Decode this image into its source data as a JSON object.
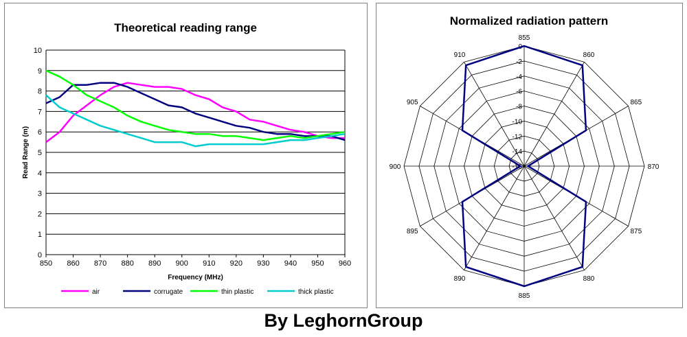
{
  "footer": {
    "credit": "By LeghornGroup"
  },
  "chart_data": [
    {
      "type": "line",
      "title": "Theoretical reading range",
      "xlabel": "Frequency  (MHz)",
      "ylabel": "Read Range  (m)",
      "xlim": [
        850,
        960
      ],
      "ylim": [
        0,
        10
      ],
      "x_ticks": [
        850,
        860,
        870,
        880,
        890,
        900,
        910,
        920,
        930,
        940,
        950,
        960
      ],
      "y_ticks": [
        0,
        1,
        2,
        3,
        4,
        5,
        6,
        7,
        8,
        9,
        10
      ],
      "grid": "horizontal",
      "legend": "bottom",
      "x": [
        850,
        855,
        860,
        865,
        870,
        875,
        880,
        885,
        890,
        895,
        900,
        905,
        910,
        915,
        920,
        925,
        930,
        935,
        940,
        945,
        950,
        955,
        960
      ],
      "series": [
        {
          "name": "air",
          "color": "#ff00ff",
          "values": [
            5.5,
            6.0,
            6.8,
            7.3,
            7.8,
            8.2,
            8.4,
            8.3,
            8.2,
            8.2,
            8.1,
            7.8,
            7.6,
            7.2,
            7.0,
            6.6,
            6.5,
            6.3,
            6.1,
            6.0,
            5.8,
            5.7,
            5.7
          ]
        },
        {
          "name": "corrugate",
          "color": "#000080",
          "values": [
            7.4,
            7.7,
            8.3,
            8.3,
            8.4,
            8.4,
            8.2,
            7.9,
            7.6,
            7.3,
            7.2,
            6.9,
            6.7,
            6.5,
            6.3,
            6.2,
            6.0,
            5.9,
            5.9,
            5.8,
            5.8,
            5.8,
            5.6
          ]
        },
        {
          "name": "thin plastic",
          "color": "#00ff00",
          "values": [
            9.0,
            8.7,
            8.3,
            7.8,
            7.5,
            7.2,
            6.8,
            6.5,
            6.3,
            6.1,
            6.0,
            5.9,
            5.9,
            5.8,
            5.8,
            5.7,
            5.6,
            5.7,
            5.8,
            5.7,
            5.8,
            5.9,
            6.0
          ]
        },
        {
          "name": "thick plastic",
          "color": "#00cccc",
          "values": [
            7.8,
            7.2,
            6.9,
            6.6,
            6.3,
            6.1,
            5.9,
            5.7,
            5.5,
            5.5,
            5.5,
            5.3,
            5.4,
            5.4,
            5.4,
            5.4,
            5.4,
            5.5,
            5.6,
            5.6,
            5.7,
            5.8,
            5.9
          ]
        }
      ]
    },
    {
      "type": "radar",
      "title": "Normalized radiation pattern",
      "categories": [
        "855",
        "860",
        "865",
        "870",
        "875",
        "880",
        "885",
        "890",
        "895",
        "900",
        "905",
        "910"
      ],
      "r_ticks": [
        "0",
        "-2",
        "-4",
        "-6",
        "-8",
        "-10",
        "-12",
        "-14",
        "-16"
      ],
      "rlim": [
        -16,
        0
      ],
      "series": [
        {
          "color": "#000080",
          "values": [
            0,
            -0.5,
            -6.5,
            -15.5,
            -6.5,
            -0.5,
            0,
            -0.5,
            -6.5,
            -15.5,
            -6.5,
            -0.5
          ]
        }
      ]
    }
  ]
}
